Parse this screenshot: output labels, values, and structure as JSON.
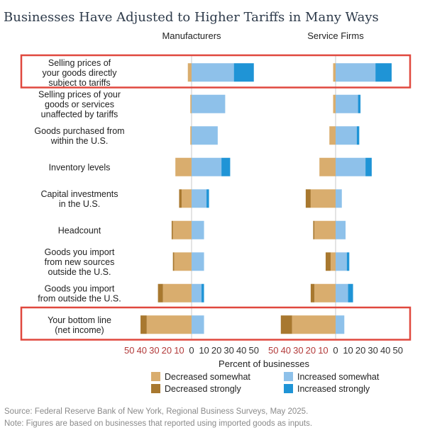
{
  "chart_data": {
    "type": "bar",
    "title": "Businesses Have Adjusted to Higher Tariffs in Many Ways",
    "xlabel": "Percent of businesses",
    "xlim": [
      -50,
      50
    ],
    "x_ticks": [
      50,
      40,
      30,
      20,
      10,
      0,
      10,
      20,
      30,
      40,
      50
    ],
    "categories": [
      [
        "Selling prices of",
        "your goods directly",
        "subject to tariffs"
      ],
      [
        "Selling prices of your",
        "goods or services",
        "unaffected by tariffs"
      ],
      [
        "Goods purchased from",
        "within the U.S."
      ],
      [
        "Inventory levels"
      ],
      [
        "Capital investments",
        "in the U.S."
      ],
      [
        "Headcount"
      ],
      [
        "Goods you import",
        "from new sources",
        "outside the U.S."
      ],
      [
        "Goods you import",
        "from outside the U.S."
      ],
      [
        "Your bottom line",
        "(net income)"
      ]
    ],
    "highlighted": [
      0,
      8
    ],
    "legend": [
      {
        "name": "Decreased somewhat",
        "color": "#d9ad6e"
      },
      {
        "name": "Increased somewhat",
        "color": "#8ec1ea"
      },
      {
        "name": "Decreased strongly",
        "color": "#a8782f"
      },
      {
        "name": "Increased strongly",
        "color": "#1f94d6"
      }
    ],
    "panels": [
      {
        "name": "Manufacturers",
        "decreased_strongly": [
          0,
          0,
          0,
          0,
          2,
          1,
          1,
          4,
          5
        ],
        "decreased_somewhat": [
          3,
          1,
          1,
          13,
          8,
          15,
          14,
          23,
          36
        ],
        "increased_somewhat": [
          34,
          27,
          21,
          24,
          12,
          10,
          10,
          8,
          10
        ],
        "increased_strongly": [
          16,
          0,
          0,
          7,
          2,
          0,
          0,
          2,
          0
        ]
      },
      {
        "name": "Service Firms",
        "decreased_strongly": [
          0,
          0,
          0,
          0,
          4,
          1,
          4,
          3,
          9
        ],
        "decreased_somewhat": [
          2,
          2,
          5,
          13,
          20,
          17,
          4,
          17,
          35
        ],
        "increased_somewhat": [
          32,
          18,
          17,
          24,
          5,
          8,
          9,
          10,
          7
        ],
        "increased_strongly": [
          13,
          2,
          2,
          5,
          0,
          0,
          2,
          4,
          0
        ]
      }
    ]
  },
  "footer": {
    "source": "Source: Federal Reserve Bank of New York, Regional Business Surveys, May 2025.",
    "note": "Note: Figures are based on businesses that reported using imported goods as inputs."
  }
}
